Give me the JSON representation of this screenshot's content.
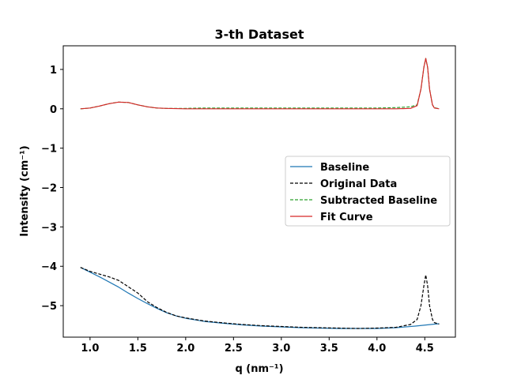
{
  "chart_data": {
    "type": "line",
    "title": "3-th Dataset",
    "xlabel": "q (nm⁻¹)",
    "ylabel": "Intensity (cm⁻¹)",
    "xlim": [
      0.72,
      4.82
    ],
    "ylim": [
      -5.8,
      1.6
    ],
    "xticks": [
      1.0,
      1.5,
      2.0,
      2.5,
      3.0,
      3.5,
      4.0,
      4.5
    ],
    "xtick_labels": [
      "1.0",
      "1.5",
      "2.0",
      "2.5",
      "3.0",
      "3.5",
      "4.0",
      "4.5"
    ],
    "yticks": [
      1,
      0,
      -1,
      -2,
      -3,
      -4,
      -5
    ],
    "ytick_labels": [
      "1",
      "0",
      "−1",
      "−2",
      "−3",
      "−4",
      "−5"
    ],
    "legend_position": "center-right",
    "grid": false,
    "series": [
      {
        "name": "Baseline",
        "color": "#1f77b4",
        "style": "solid",
        "x": [
          0.9,
          1.0,
          1.1,
          1.2,
          1.3,
          1.4,
          1.5,
          1.6,
          1.7,
          1.8,
          1.9,
          2.0,
          2.2,
          2.4,
          2.6,
          2.8,
          3.0,
          3.2,
          3.4,
          3.6,
          3.8,
          4.0,
          4.2,
          4.4,
          4.6,
          4.65
        ],
        "y": [
          -4.03,
          -4.15,
          -4.27,
          -4.4,
          -4.53,
          -4.68,
          -4.82,
          -4.95,
          -5.07,
          -5.18,
          -5.26,
          -5.32,
          -5.4,
          -5.45,
          -5.49,
          -5.52,
          -5.54,
          -5.56,
          -5.57,
          -5.58,
          -5.58,
          -5.58,
          -5.56,
          -5.52,
          -5.47,
          -5.46
        ]
      },
      {
        "name": "Original Data",
        "color": "#000000",
        "style": "dashed",
        "x": [
          0.9,
          1.0,
          1.1,
          1.2,
          1.3,
          1.4,
          1.5,
          1.6,
          1.7,
          1.8,
          1.9,
          2.0,
          2.2,
          2.4,
          2.6,
          2.8,
          3.0,
          3.2,
          3.4,
          3.6,
          3.8,
          4.0,
          4.2,
          4.35,
          4.42,
          4.46,
          4.49,
          4.51,
          4.53,
          4.55,
          4.58,
          4.6,
          4.65
        ],
        "y": [
          -4.03,
          -4.13,
          -4.2,
          -4.27,
          -4.36,
          -4.52,
          -4.68,
          -4.9,
          -5.05,
          -5.17,
          -5.26,
          -5.31,
          -5.39,
          -5.44,
          -5.48,
          -5.51,
          -5.53,
          -5.55,
          -5.56,
          -5.57,
          -5.58,
          -5.57,
          -5.55,
          -5.48,
          -5.35,
          -5.0,
          -4.5,
          -4.22,
          -4.5,
          -5.0,
          -5.35,
          -5.43,
          -5.47
        ]
      },
      {
        "name": "Subtracted Baseline",
        "color": "#2ca02c",
        "style": "dashed",
        "x": [
          0.9,
          1.0,
          1.1,
          1.2,
          1.3,
          1.4,
          1.5,
          1.6,
          1.7,
          1.8,
          2.0,
          2.2,
          2.4,
          2.6,
          2.8,
          3.0,
          3.2,
          3.4,
          3.6,
          3.8,
          4.0,
          4.2,
          4.35,
          4.42,
          4.46,
          4.49,
          4.51,
          4.53,
          4.55,
          4.58,
          4.6,
          4.65
        ],
        "y": [
          0.0,
          0.02,
          0.07,
          0.13,
          0.17,
          0.16,
          0.1,
          0.05,
          0.02,
          0.01,
          0.01,
          0.02,
          0.02,
          0.02,
          0.02,
          0.02,
          0.02,
          0.02,
          0.02,
          0.02,
          0.02,
          0.03,
          0.05,
          0.1,
          0.5,
          1.05,
          1.28,
          1.05,
          0.5,
          0.1,
          0.03,
          0.0
        ]
      },
      {
        "name": "Fit Curve",
        "color": "#d62728",
        "style": "solid",
        "x": [
          0.9,
          1.0,
          1.1,
          1.2,
          1.3,
          1.4,
          1.5,
          1.6,
          1.7,
          1.8,
          2.0,
          2.2,
          2.4,
          2.6,
          2.8,
          3.0,
          3.2,
          3.4,
          3.6,
          3.8,
          4.0,
          4.2,
          4.35,
          4.42,
          4.46,
          4.49,
          4.51,
          4.53,
          4.55,
          4.58,
          4.6,
          4.65
        ],
        "y": [
          0.0,
          0.02,
          0.07,
          0.13,
          0.17,
          0.16,
          0.1,
          0.05,
          0.02,
          0.01,
          0.0,
          0.0,
          0.0,
          0.0,
          0.0,
          0.0,
          0.0,
          0.0,
          0.0,
          0.0,
          0.0,
          0.0,
          0.01,
          0.08,
          0.5,
          1.05,
          1.28,
          1.05,
          0.5,
          0.1,
          0.02,
          0.0
        ]
      }
    ]
  }
}
